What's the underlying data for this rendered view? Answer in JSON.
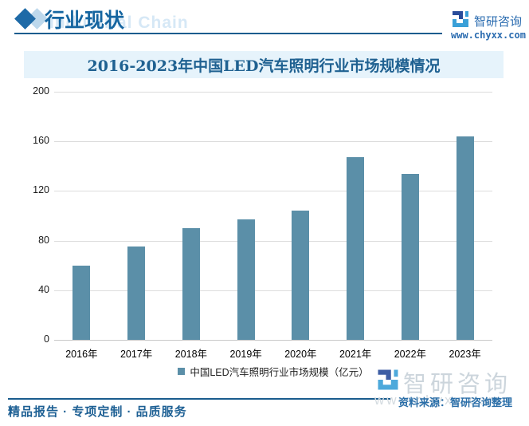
{
  "header": {
    "title": "行业现状",
    "ghost_title": "Industrial Chain",
    "brand_name": "智研咨询",
    "brand_url": "www.chyxx.com"
  },
  "chart_data": {
    "type": "bar",
    "title": "2016-2023年中国LED汽车照明行业市场规模情况",
    "categories": [
      "2016年",
      "2017年",
      "2018年",
      "2019年",
      "2020年",
      "2021年",
      "2022年",
      "2023年"
    ],
    "values": [
      60,
      75,
      90,
      97,
      104,
      147,
      134,
      164
    ],
    "legend": "中国LED汽车照明行业市场规模（亿元）",
    "ylabel": "",
    "xlabel": "",
    "ylim": [
      0,
      200
    ],
    "yticks": [
      0,
      40,
      80,
      120,
      160,
      200
    ],
    "grid": true,
    "legend_position": "bottom",
    "bar_color": "#5b8fa8"
  },
  "footer": {
    "tagline": "精品报告 · 专项定制 · 品质服务",
    "source": "资料来源：智研咨询整理",
    "watermark_text": "智研咨询",
    "watermark_url": "www.chyxx.com"
  },
  "colors": {
    "accent": "#1a5c8e",
    "bar": "#5b8fa8",
    "title_band_bg": "#e6f3fb",
    "title_text": "#1f6191",
    "gridline": "#dcdcdc",
    "watermark": "#ccd5dc"
  }
}
